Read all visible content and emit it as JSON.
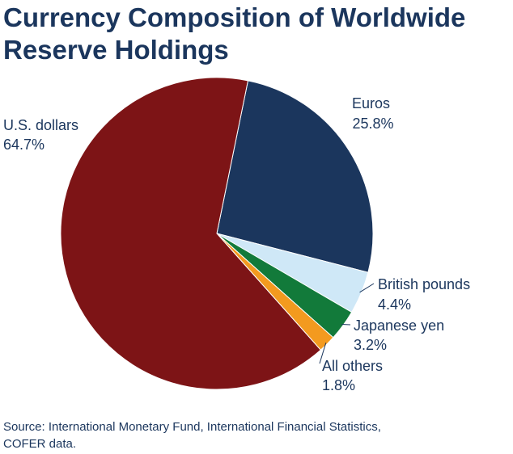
{
  "chart_data": {
    "type": "pie",
    "title_lines": [
      "Currency Composition of Worldwide",
      "Reserve Holdings"
    ],
    "slices": [
      {
        "label": "U.S. dollars",
        "value": 64.7,
        "value_label": "64.7%",
        "color": "#7d1416"
      },
      {
        "label": "Euros",
        "value": 25.8,
        "value_label": "25.8%",
        "color": "#1b365d"
      },
      {
        "label": "British pounds",
        "value": 4.4,
        "value_label": "4.4%",
        "color": "#cfe8f7"
      },
      {
        "label": "Japanese yen",
        "value": 3.2,
        "value_label": "3.2%",
        "color": "#127a3a"
      },
      {
        "label": "All others",
        "value": 1.8,
        "value_label": "1.8%",
        "color": "#f39a1f"
      }
    ],
    "start_angle_deg": 11.5,
    "legend": "none"
  },
  "source_lines": [
    "Source: International Monetary Fund, International Financial Statistics,",
    "COFER data."
  ]
}
